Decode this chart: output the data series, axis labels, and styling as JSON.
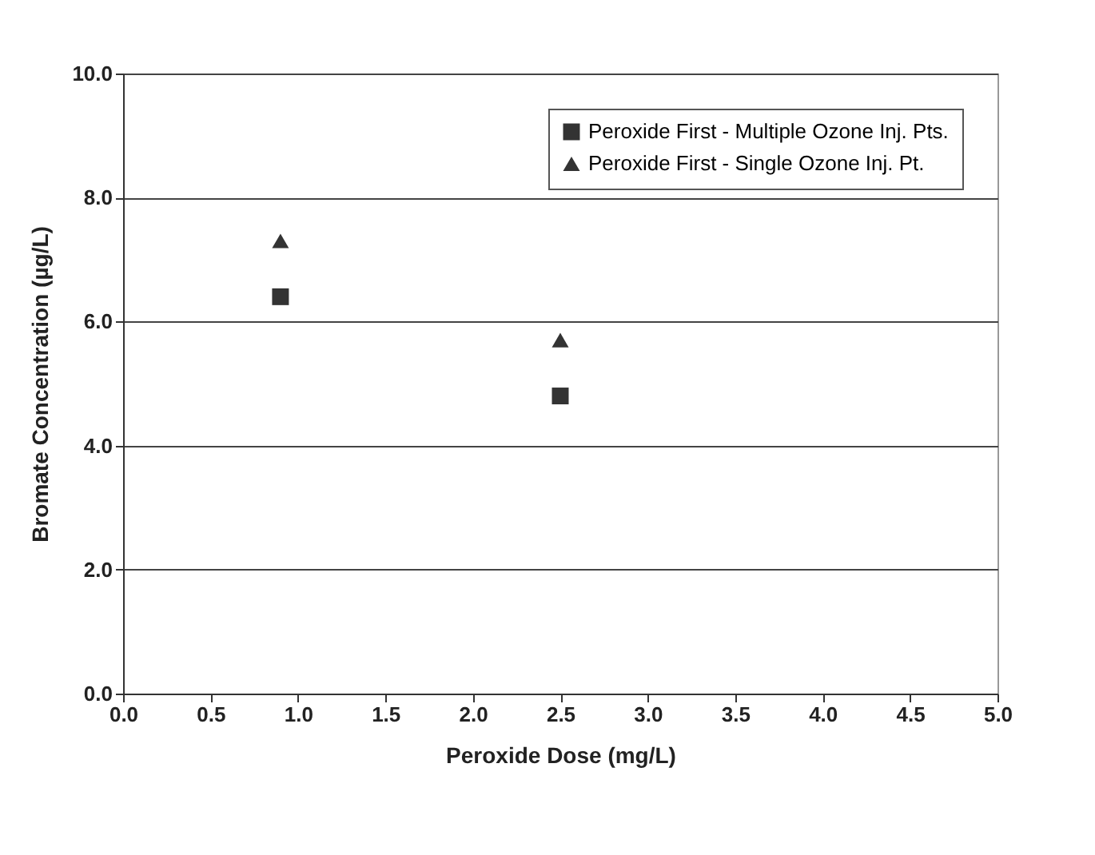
{
  "chart_data": {
    "type": "scatter",
    "xlabel": "Peroxide Dose (mg/L)",
    "ylabel": "Bromate Concentration (µg/L)",
    "x": [
      0.9,
      2.5
    ],
    "series": [
      {
        "name": "Peroxide First - Multiple Ozone Inj. Pts.",
        "color": "#333333",
        "marker": "square",
        "values": [
          6.4,
          4.8
        ]
      },
      {
        "name": "Peroxide First - Single Ozone Inj. Pt.",
        "color": "#333333",
        "marker": "triangle",
        "values": [
          7.3,
          5.7
        ]
      }
    ],
    "xlim": [
      0,
      5
    ],
    "xticks": [
      {
        "value": 0,
        "label": "0.0"
      },
      {
        "value": 0.5,
        "label": "0.5"
      },
      {
        "value": 1,
        "label": "1.0"
      },
      {
        "value": 1.5,
        "label": "1.5"
      },
      {
        "value": 2,
        "label": "2.0"
      },
      {
        "value": 2.5,
        "label": "2.5"
      },
      {
        "value": 3,
        "label": "3.0"
      },
      {
        "value": 3.5,
        "label": "3.5"
      },
      {
        "value": 4,
        "label": "4.0"
      },
      {
        "value": 4.5,
        "label": "4.5"
      },
      {
        "value": 5,
        "label": "5.0"
      }
    ],
    "ylim": [
      0,
      10
    ],
    "yticks": [
      {
        "value": 0,
        "label": "0.0"
      },
      {
        "value": 2,
        "label": "2.0"
      },
      {
        "value": 4,
        "label": "4.0"
      },
      {
        "value": 6,
        "label": "6.0"
      },
      {
        "value": 8,
        "label": "8.0"
      },
      {
        "value": 10,
        "label": "10.0"
      }
    ],
    "grid": "y",
    "legend": "top right"
  }
}
